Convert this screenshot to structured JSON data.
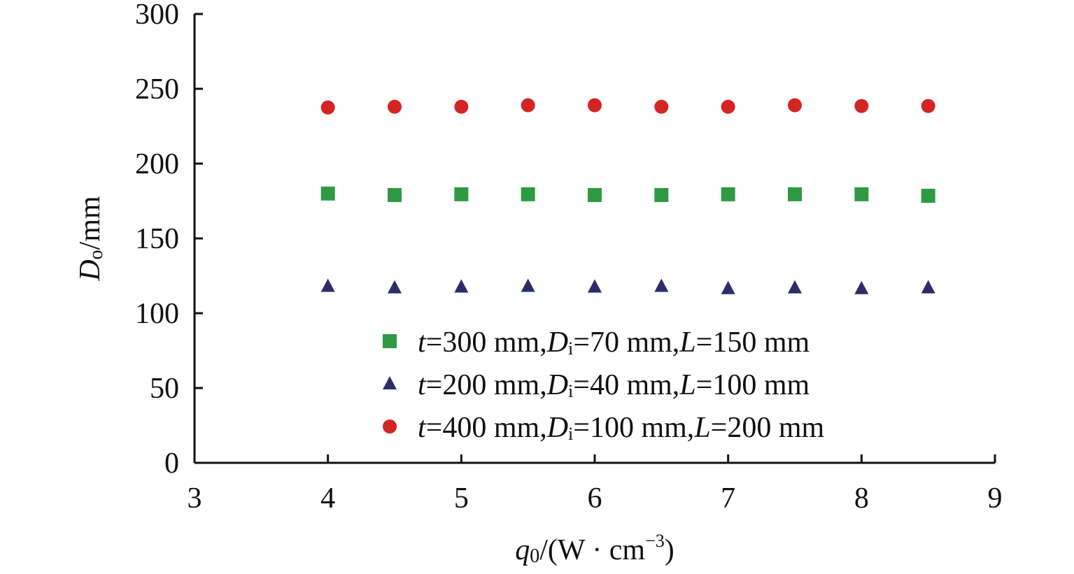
{
  "chart_data": {
    "type": "scatter",
    "title": "",
    "xlabel": {
      "main": "q",
      "sub": "0",
      "rest": "/(W · cm",
      "sup": "−3",
      "end": ")"
    },
    "ylabel": {
      "main": "D",
      "sub": "o",
      "rest": "/mm"
    },
    "xlim": [
      3,
      9
    ],
    "ylim": [
      0,
      300
    ],
    "xticks": [
      3,
      4,
      5,
      6,
      7,
      8,
      9
    ],
    "yticks": [
      0,
      50,
      100,
      150,
      200,
      250,
      300
    ],
    "grid": false,
    "legend_position": "lower-right",
    "x": [
      4,
      4.5,
      5,
      5.5,
      6,
      6.5,
      7,
      7.5,
      8,
      8.5
    ],
    "series": [
      {
        "name": "t=300 mm,Di=70 mm,L=150 mm",
        "parts": [
          "t",
          "=300 mm,",
          "D",
          "i",
          "=70 mm,",
          "L",
          "=150 mm"
        ],
        "marker": "square",
        "color": "#2e9a44",
        "values": [
          180,
          179,
          179.5,
          179.5,
          179,
          179,
          179.5,
          179.5,
          179.5,
          178.5
        ]
      },
      {
        "name": "t=200 mm,Di=40 mm,L=100 mm",
        "parts": [
          "t",
          "=200 mm,",
          "D",
          "i",
          "=40 mm,",
          "L",
          "=100 mm"
        ],
        "marker": "triangle",
        "color": "#2b2d6b",
        "values": [
          118,
          117,
          117.5,
          118,
          117.5,
          118,
          116.5,
          117,
          116.5,
          117
        ]
      },
      {
        "name": "t=400 mm,Di=100 mm,L=200 mm",
        "parts": [
          "t",
          "=400 mm,",
          "D",
          "i",
          "=100 mm,",
          "L",
          "=200 mm"
        ],
        "marker": "circle",
        "color": "#d42424",
        "values": [
          237.5,
          238,
          238,
          239,
          239,
          238,
          238,
          239,
          238.5,
          238.5
        ]
      }
    ]
  }
}
